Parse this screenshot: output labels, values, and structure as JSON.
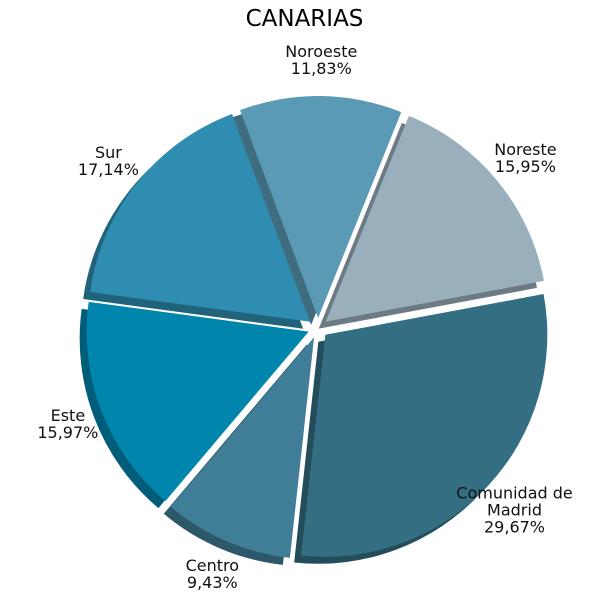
{
  "chart_data": {
    "type": "pie",
    "title": "CANARIAS",
    "categories": [
      "Noreste",
      "Comunidad de Madrid",
      "Centro",
      "Este",
      "Sur",
      "Noroeste"
    ],
    "values": [
      15.95,
      29.67,
      9.43,
      15.97,
      17.14,
      11.83
    ],
    "value_labels": [
      "15,95%",
      "29,67%",
      "9,43%",
      "15,97%",
      "17,14%",
      "11,83%"
    ],
    "colors": [
      "#9aafbc",
      "#336e82",
      "#3f7e96",
      "#0085ad",
      "#2e8db0",
      "#5b9ab5"
    ]
  }
}
